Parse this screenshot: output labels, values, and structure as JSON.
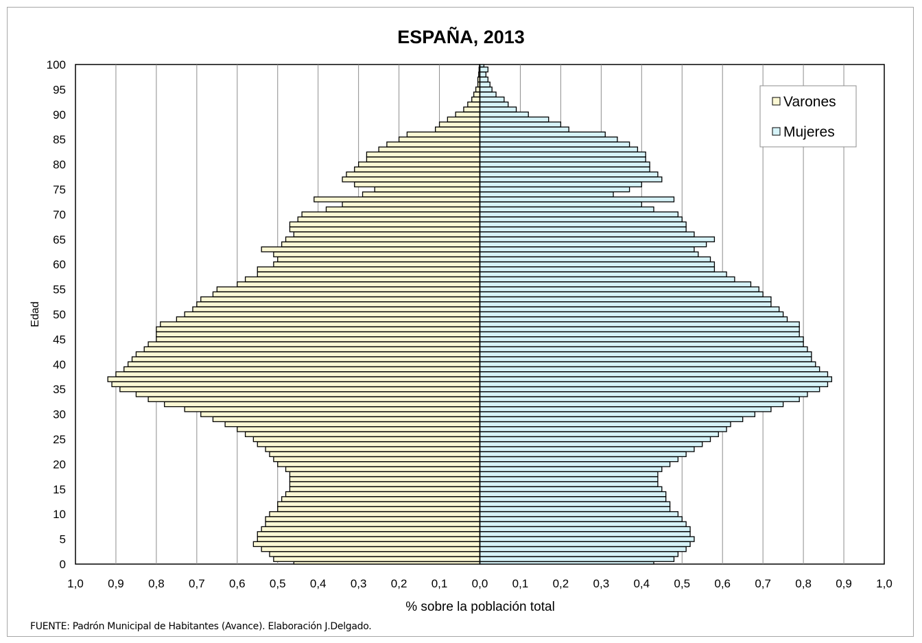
{
  "chart_data": {
    "type": "bar",
    "orientation": "horizontal",
    "subtype": "population-pyramid",
    "title": "ESPAÑA, 2013",
    "xlabel": "% sobre la población total",
    "ylabel": "Edad",
    "xlim": [
      -1.0,
      1.0
    ],
    "ylim": [
      0,
      100
    ],
    "x_ticks": [
      "1,0",
      "0,9",
      "0,8",
      "0,7",
      "0,6",
      "0,5",
      "0,4",
      "0,3",
      "0,2",
      "0,1",
      "0,0",
      "0,1",
      "0,2",
      "0,3",
      "0,4",
      "0,5",
      "0,6",
      "0,7",
      "0,8",
      "0,9",
      "1,0"
    ],
    "y_ticks": [
      "0",
      "5",
      "10",
      "15",
      "20",
      "25",
      "30",
      "35",
      "40",
      "45",
      "50",
      "55",
      "60",
      "65",
      "70",
      "75",
      "80",
      "85",
      "90",
      "95",
      "100"
    ],
    "grid": true,
    "legend_position": "top-right",
    "categories": [
      0,
      1,
      2,
      3,
      4,
      5,
      6,
      7,
      8,
      9,
      10,
      11,
      12,
      13,
      14,
      15,
      16,
      17,
      18,
      19,
      20,
      21,
      22,
      23,
      24,
      25,
      26,
      27,
      28,
      29,
      30,
      31,
      32,
      33,
      34,
      35,
      36,
      37,
      38,
      39,
      40,
      41,
      42,
      43,
      44,
      45,
      46,
      47,
      48,
      49,
      50,
      51,
      52,
      53,
      54,
      55,
      56,
      57,
      58,
      59,
      60,
      61,
      62,
      63,
      64,
      65,
      66,
      67,
      68,
      69,
      70,
      71,
      72,
      73,
      74,
      75,
      76,
      77,
      78,
      79,
      80,
      81,
      82,
      83,
      84,
      85,
      86,
      87,
      88,
      89,
      90,
      91,
      92,
      93,
      94,
      95,
      96,
      97,
      98,
      99,
      100
    ],
    "series": [
      {
        "name": "Varones",
        "color": "#fbf8d4",
        "values": [
          0.46,
          0.51,
          0.52,
          0.54,
          0.56,
          0.55,
          0.55,
          0.54,
          0.53,
          0.53,
          0.52,
          0.5,
          0.5,
          0.49,
          0.48,
          0.47,
          0.47,
          0.47,
          0.47,
          0.48,
          0.5,
          0.51,
          0.52,
          0.53,
          0.55,
          0.56,
          0.58,
          0.6,
          0.63,
          0.66,
          0.69,
          0.73,
          0.78,
          0.82,
          0.85,
          0.89,
          0.91,
          0.92,
          0.9,
          0.88,
          0.87,
          0.86,
          0.85,
          0.83,
          0.82,
          0.8,
          0.8,
          0.8,
          0.79,
          0.75,
          0.73,
          0.71,
          0.7,
          0.69,
          0.66,
          0.65,
          0.6,
          0.58,
          0.55,
          0.55,
          0.51,
          0.5,
          0.51,
          0.54,
          0.49,
          0.48,
          0.46,
          0.47,
          0.47,
          0.45,
          0.44,
          0.38,
          0.34,
          0.41,
          0.29,
          0.26,
          0.31,
          0.34,
          0.33,
          0.31,
          0.3,
          0.28,
          0.28,
          0.25,
          0.23,
          0.2,
          0.18,
          0.11,
          0.1,
          0.08,
          0.06,
          0.04,
          0.03,
          0.02,
          0.015,
          0.01,
          0.005,
          0.005,
          0.003,
          0.002,
          0.001
        ]
      },
      {
        "name": "Mujeres",
        "color": "#d6f3f8",
        "values": [
          0.43,
          0.48,
          0.49,
          0.51,
          0.52,
          0.53,
          0.52,
          0.52,
          0.51,
          0.5,
          0.49,
          0.47,
          0.47,
          0.46,
          0.46,
          0.45,
          0.44,
          0.44,
          0.44,
          0.45,
          0.47,
          0.49,
          0.51,
          0.53,
          0.55,
          0.57,
          0.59,
          0.61,
          0.62,
          0.65,
          0.68,
          0.72,
          0.75,
          0.79,
          0.81,
          0.84,
          0.86,
          0.87,
          0.86,
          0.84,
          0.83,
          0.82,
          0.82,
          0.81,
          0.8,
          0.8,
          0.79,
          0.79,
          0.79,
          0.76,
          0.75,
          0.74,
          0.72,
          0.72,
          0.7,
          0.69,
          0.67,
          0.63,
          0.61,
          0.58,
          0.58,
          0.57,
          0.54,
          0.53,
          0.56,
          0.58,
          0.53,
          0.51,
          0.51,
          0.5,
          0.49,
          0.43,
          0.4,
          0.48,
          0.33,
          0.37,
          0.4,
          0.45,
          0.44,
          0.42,
          0.42,
          0.41,
          0.41,
          0.39,
          0.37,
          0.34,
          0.31,
          0.22,
          0.2,
          0.17,
          0.12,
          0.09,
          0.07,
          0.06,
          0.04,
          0.03,
          0.025,
          0.02,
          0.015,
          0.02,
          0.01
        ]
      }
    ]
  },
  "footer": {
    "source": "FUENTE: Padrón Municipal de Habitantes (Avance). Elaboración J.Delgado."
  }
}
